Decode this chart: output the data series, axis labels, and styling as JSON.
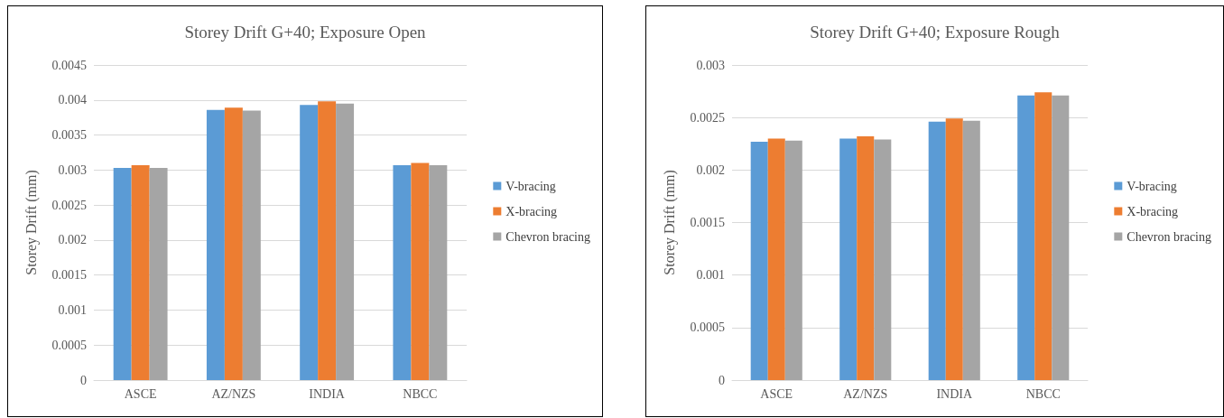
{
  "chart_data": [
    {
      "type": "bar",
      "title": "Storey Drift G+40; Exposure Open",
      "ylabel": "Storey Drift (mm)",
      "categories": [
        "ASCE",
        "AZ/NZS",
        "INDIA",
        "NBCC"
      ],
      "series": [
        {
          "name": "V-bracing",
          "color": "#5b9bd5",
          "values": [
            0.00303,
            0.00386,
            0.00393,
            0.00307
          ]
        },
        {
          "name": "X-bracing",
          "color": "#ed7d31",
          "values": [
            0.00307,
            0.00389,
            0.00398,
            0.0031
          ]
        },
        {
          "name": "Chevron bracing",
          "color": "#a5a5a5",
          "values": [
            0.00303,
            0.00385,
            0.00395,
            0.00307
          ]
        }
      ],
      "ylim": [
        0,
        0.0045
      ],
      "yticks": [
        0,
        0.0005,
        0.001,
        0.0015,
        0.002,
        0.0025,
        0.003,
        0.0035,
        0.004,
        0.0045
      ],
      "grid": "y",
      "legend": "right"
    },
    {
      "type": "bar",
      "title": "Storey Drift G+40; Exposure Rough",
      "ylabel": "Storey Drift (mm)",
      "categories": [
        "ASCE",
        "AZ/NZS",
        "INDIA",
        "NBCC"
      ],
      "series": [
        {
          "name": "V-bracing",
          "color": "#5b9bd5",
          "values": [
            0.00227,
            0.0023,
            0.00246,
            0.00271
          ]
        },
        {
          "name": "X-bracing",
          "color": "#ed7d31",
          "values": [
            0.0023,
            0.00232,
            0.00249,
            0.00274
          ]
        },
        {
          "name": "Chevron bracing",
          "color": "#a5a5a5",
          "values": [
            0.00228,
            0.00229,
            0.00247,
            0.00271
          ]
        }
      ],
      "ylim": [
        0,
        0.003
      ],
      "yticks": [
        0,
        0.0005,
        0.001,
        0.0015,
        0.002,
        0.0025,
        0.003
      ],
      "grid": "y",
      "legend": "right"
    }
  ]
}
